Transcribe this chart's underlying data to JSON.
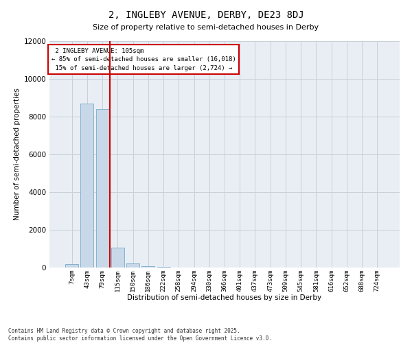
{
  "title": "2, INGLEBY AVENUE, DERBY, DE23 8DJ",
  "subtitle": "Size of property relative to semi-detached houses in Derby",
  "xlabel": "Distribution of semi-detached houses by size in Derby",
  "ylabel": "Number of semi-detached properties",
  "categories": [
    "7sqm",
    "43sqm",
    "79sqm",
    "115sqm",
    "150sqm",
    "186sqm",
    "222sqm",
    "258sqm",
    "294sqm",
    "330sqm",
    "366sqm",
    "401sqm",
    "437sqm",
    "473sqm",
    "509sqm",
    "545sqm",
    "581sqm",
    "616sqm",
    "652sqm",
    "688sqm",
    "724sqm"
  ],
  "values": [
    200,
    8700,
    8400,
    1050,
    230,
    80,
    30,
    0,
    0,
    0,
    0,
    0,
    0,
    0,
    0,
    0,
    0,
    0,
    0,
    0,
    0
  ],
  "bar_color": "#c8d8e8",
  "bar_edge_color": "#7aaacc",
  "property_bar_index": 2,
  "property_label": "2 INGLEBY AVENUE: 105sqm",
  "pct_smaller": 85,
  "count_smaller": 16018,
  "pct_larger": 15,
  "count_larger": 2724,
  "annotation_box_color": "#ffffff",
  "annotation_box_edge_color": "#cc0000",
  "vline_color": "#cc0000",
  "ylim": [
    0,
    12000
  ],
  "yticks": [
    0,
    2000,
    4000,
    6000,
    8000,
    10000,
    12000
  ],
  "grid_color": "#c8d0da",
  "background_color": "#e8eef4",
  "fig_background_color": "#ffffff",
  "footer_line1": "Contains HM Land Registry data © Crown copyright and database right 2025.",
  "footer_line2": "Contains public sector information licensed under the Open Government Licence v3.0."
}
